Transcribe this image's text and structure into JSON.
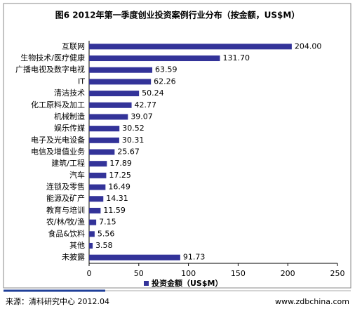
{
  "chart_data": {
    "type": "hbar",
    "title": "图6 2012年第一季度创业投资案例行业分布（按金额，US$M）",
    "categories": [
      "互联网",
      "生物技术/医疗健康",
      "广播电视及数字电视",
      "IT",
      "清洁技术",
      "化工原料及加工",
      "机械制造",
      "娱乐传媒",
      "电子及光电设备",
      "电信及增值业务",
      "建筑/工程",
      "汽车",
      "连锁及零售",
      "能源及矿产",
      "教育与培训",
      "农/林/牧/渔",
      "食品&饮料",
      "其他",
      "未披露"
    ],
    "series": [
      {
        "name": "投资金额（US$M）",
        "color": "#333399",
        "values": [
          204,
          131.7,
          63.59,
          62.26,
          50.24,
          42.77,
          39.07,
          30.52,
          30.31,
          25.67,
          17.89,
          17.25,
          16.49,
          14.31,
          11.59,
          7.15,
          5.56,
          3.58,
          91.73
        ],
        "value_labels": [
          "204.00",
          "131.70",
          "63.59",
          "62.26",
          "50.24",
          "42.77",
          "39.07",
          "30.52",
          "30.31",
          "25.67",
          "17.89",
          "17.25",
          "16.49",
          "14.31",
          "11.59",
          "7.15",
          "5.56",
          "3.58",
          "91.73"
        ]
      }
    ],
    "xlim": [
      0,
      250
    ],
    "xticks": [
      0,
      50,
      100,
      150,
      200,
      250
    ],
    "legend": "bottom",
    "source": "来源：清科研究中心 2012.04",
    "website": "www.zdbchina.com"
  }
}
